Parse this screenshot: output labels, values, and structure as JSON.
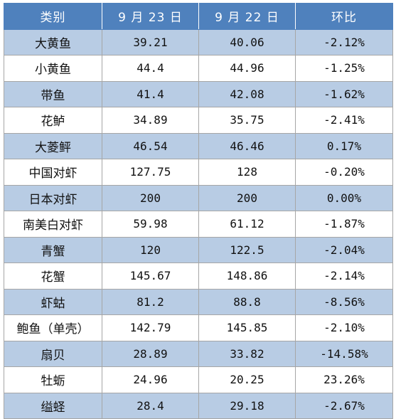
{
  "header": {
    "category": "类别",
    "date1": "9 月 23 日",
    "date2": "9 月 22 日",
    "change": "环比"
  },
  "rows": [
    {
      "name": "大黄鱼",
      "d1": "39.21",
      "d2": "40.06",
      "chg": "-2.12%"
    },
    {
      "name": "小黄鱼",
      "d1": "44.4",
      "d2": "44.96",
      "chg": "-1.25%"
    },
    {
      "name": "带鱼",
      "d1": "41.4",
      "d2": "42.08",
      "chg": "-1.62%"
    },
    {
      "name": "花鲈",
      "d1": "34.89",
      "d2": "35.75",
      "chg": "-2.41%"
    },
    {
      "name": "大菱鲆",
      "d1": "46.54",
      "d2": "46.46",
      "chg": "0.17%"
    },
    {
      "name": "中国对虾",
      "d1": "127.75",
      "d2": "128",
      "chg": "-0.20%"
    },
    {
      "name": "日本对虾",
      "d1": "200",
      "d2": "200",
      "chg": "0.00%"
    },
    {
      "name": "南美白对虾",
      "d1": "59.98",
      "d2": "61.12",
      "chg": "-1.87%"
    },
    {
      "name": "青蟹",
      "d1": "120",
      "d2": "122.5",
      "chg": "-2.04%"
    },
    {
      "name": "花蟹",
      "d1": "145.67",
      "d2": "148.86",
      "chg": "-2.14%"
    },
    {
      "name": "虾蛄",
      "d1": "81.2",
      "d2": "88.8",
      "chg": "-8.56%"
    },
    {
      "name": "鲍鱼（单壳）",
      "d1": "142.79",
      "d2": "145.85",
      "chg": "-2.10%"
    },
    {
      "name": "扇贝",
      "d1": "28.89",
      "d2": "33.82",
      "chg": "-14.58%"
    },
    {
      "name": "牡蛎",
      "d1": "24.96",
      "d2": "20.25",
      "chg": "23.26%"
    },
    {
      "name": "缢蛏",
      "d1": "28.4",
      "d2": "29.18",
      "chg": "-2.67%"
    }
  ],
  "colors": {
    "header_bg": "#4f81bd",
    "band_bg": "#b8cce4",
    "plain_bg": "#ffffff"
  }
}
